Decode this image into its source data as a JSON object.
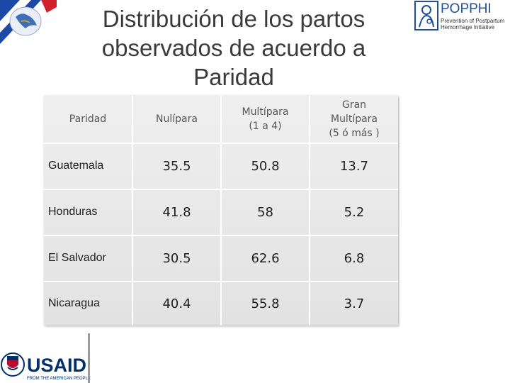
{
  "title": "Distribución de los partos observados de acuerdo a Paridad",
  "logos": {
    "poppphi_name": "POPPHI",
    "poppphi_tagline_1": "Prevention of Postpartum",
    "poppphi_tagline_2": "Hemorrhage Initiative",
    "usaid_name": "USAID",
    "usaid_tagline": "FROM THE AMERICAN PEOPLE"
  },
  "table": {
    "headers": {
      "col0": "Paridad",
      "col1": "Nulípara",
      "col2_line1": "Multípara",
      "col2_line2": "(1 a 4)",
      "col3_line1": "Gran",
      "col3_line2": "Multípara",
      "col3_line3": "(5 ó más )"
    },
    "rows": [
      {
        "country": "Guatemala",
        "nulipara": "35.5",
        "multipara": "50.8",
        "gran_multipara": "13.7"
      },
      {
        "country": "Honduras",
        "nulipara": "41.8",
        "multipara": "58",
        "gran_multipara": "5.2"
      },
      {
        "country": "El Salvador",
        "nulipara": "30.5",
        "multipara": "62.6",
        "gran_multipara": "6.8"
      },
      {
        "country": "Nicaragua",
        "nulipara": "40.4",
        "multipara": "55.8",
        "gran_multipara": "3.7"
      }
    ]
  },
  "colors": {
    "usaid_blue": "#002f6c",
    "usaid_red": "#ba0c2f",
    "poppi_blue": "#1f4f9a"
  }
}
